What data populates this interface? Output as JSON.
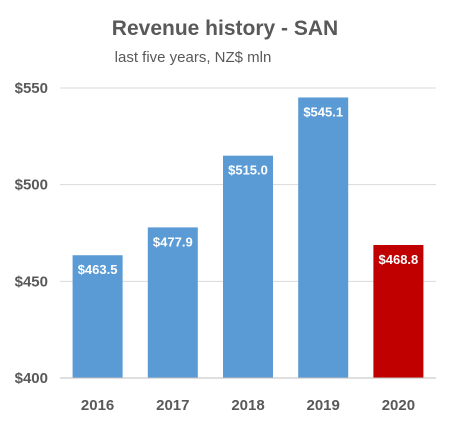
{
  "chart_data": {
    "type": "bar",
    "title": "Revenue history - SAN",
    "subtitle": "last five years, NZ$ mln",
    "categories": [
      "2016",
      "2017",
      "2018",
      "2019",
      "2020"
    ],
    "values": [
      463.5,
      477.9,
      515.0,
      545.1,
      468.8
    ],
    "data_labels": [
      "$463.5",
      "$477.9",
      "$515.0",
      "$545.1",
      "$468.8"
    ],
    "bar_colors": [
      "#5b9bd5",
      "#5b9bd5",
      "#5b9bd5",
      "#5b9bd5",
      "#c00000"
    ],
    "ylim": [
      400,
      550
    ],
    "yticks": [
      400,
      450,
      500,
      550
    ],
    "ytick_labels": [
      "$400",
      "$450",
      "$500",
      "$550"
    ],
    "grid": true,
    "legend": "none",
    "xlabel": "",
    "ylabel": ""
  }
}
